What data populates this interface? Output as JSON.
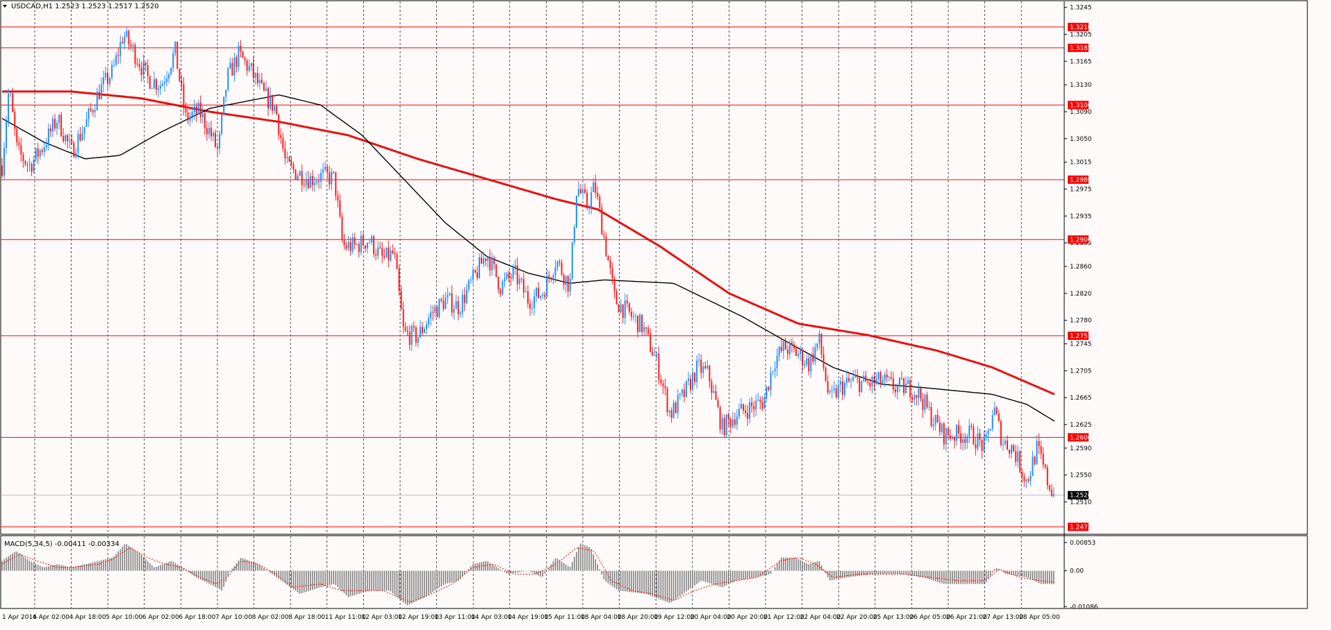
{
  "header": {
    "title": "USDCAD,H1  1.2523 1.2523 1.2517 1.2520",
    "macd_label": "MACD(5,34,5) -0.00411 -0.00334"
  },
  "colors": {
    "background": "#fffafa",
    "bull_candle": "#1e8fff",
    "bear_candle": "#ff1a1a",
    "ma_slow": "#e81010",
    "ma_fast": "#000000",
    "level_line": "#ff0000",
    "grid": "#000000",
    "histogram": "#7f7f7f",
    "signal": "#ff0000",
    "current_price_tag": "#000000"
  },
  "chart_data": {
    "type": "candlestick",
    "symbol": "USDCAD",
    "timeframe": "H1",
    "ylim": [
      1.2463,
      1.3254
    ],
    "y_ticks": [
      "1.3245",
      "1.3205",
      "1.3165",
      "1.3130",
      "1.3090",
      "1.3050",
      "1.3015",
      "1.2975",
      "1.2935",
      "1.2895",
      "1.2860",
      "1.2820",
      "1.2780",
      "1.2745",
      "1.2705",
      "1.2665",
      "1.2625",
      "1.2590",
      "1.2550",
      "1.2510"
    ],
    "x_labels": [
      "1 Apr 2016",
      "4 Apr 02:00",
      "4 Apr 18:00",
      "5 Apr 10:00",
      "6 Apr 02:00",
      "6 Apr 18:00",
      "7 Apr 10:00",
      "8 Apr 02:00",
      "8 Apr 18:00",
      "11 Apr 11:00",
      "12 Apr 03:00",
      "12 Apr 19:00",
      "13 Apr 11:00",
      "14 Apr 03:00",
      "14 Apr 19:00",
      "15 Apr 11:00",
      "18 Apr 04:00",
      "18 Apr 20:00",
      "19 Apr 12:00",
      "20 Apr 04:00",
      "20 Apr 20:00",
      "21 Apr 12:00",
      "22 Apr 04:00",
      "22 Apr 20:00",
      "25 Apr 13:00",
      "26 Apr 05:00",
      "26 Apr 21:00",
      "27 Apr 13:00",
      "28 Apr 05:00"
    ],
    "levels": [
      "1.3216",
      "1.3185",
      "1.3100",
      "1.2989",
      "1.2900",
      "1.2757",
      "1.2606",
      "1.2473"
    ],
    "current_price": "1.2520",
    "price_path": [
      [
        0,
        1.301
      ],
      [
        10,
        1.3125
      ],
      [
        22,
        1.303
      ],
      [
        40,
        1.301
      ],
      [
        60,
        1.304
      ],
      [
        80,
        1.308
      ],
      [
        100,
        1.303
      ],
      [
        120,
        1.307
      ],
      [
        140,
        1.312
      ],
      [
        160,
        1.315
      ],
      [
        175,
        1.3205
      ],
      [
        190,
        1.318
      ],
      [
        210,
        1.314
      ],
      [
        230,
        1.313
      ],
      [
        250,
        1.318
      ],
      [
        265,
        1.308
      ],
      [
        285,
        1.309
      ],
      [
        300,
        1.306
      ],
      [
        312,
        1.303
      ],
      [
        325,
        1.314
      ],
      [
        342,
        1.3175
      ],
      [
        360,
        1.315
      ],
      [
        378,
        1.3115
      ],
      [
        395,
        1.3095
      ],
      [
        410,
        1.301
      ],
      [
        425,
        1.3
      ],
      [
        445,
        1.299
      ],
      [
        465,
        1.2995
      ],
      [
        480,
        1.299
      ],
      [
        492,
        1.289
      ],
      [
        510,
        1.289
      ],
      [
        530,
        1.29
      ],
      [
        550,
        1.287
      ],
      [
        566,
        1.288
      ],
      [
        580,
        1.276
      ],
      [
        600,
        1.2755
      ],
      [
        620,
        1.279
      ],
      [
        640,
        1.281
      ],
      [
        660,
        1.28
      ],
      [
        680,
        1.284
      ],
      [
        700,
        1.288
      ],
      [
        720,
        1.283
      ],
      [
        740,
        1.285
      ],
      [
        760,
        1.281
      ],
      [
        780,
        1.282
      ],
      [
        800,
        1.287
      ],
      [
        820,
        1.283
      ],
      [
        830,
        1.298
      ],
      [
        845,
        1.295
      ],
      [
        856,
        1.298
      ],
      [
        870,
        1.29
      ],
      [
        885,
        1.281
      ],
      [
        905,
        1.279
      ],
      [
        925,
        1.277
      ],
      [
        945,
        1.272
      ],
      [
        965,
        1.264
      ],
      [
        985,
        1.267
      ],
      [
        1005,
        1.271
      ],
      [
        1020,
        1.27
      ],
      [
        1040,
        1.262
      ],
      [
        1060,
        1.264
      ],
      [
        1080,
        1.265
      ],
      [
        1100,
        1.266
      ],
      [
        1115,
        1.272
      ],
      [
        1130,
        1.274
      ],
      [
        1150,
        1.273
      ],
      [
        1165,
        1.2715
      ],
      [
        1180,
        1.275
      ],
      [
        1195,
        1.266
      ],
      [
        1210,
        1.268
      ],
      [
        1230,
        1.269
      ],
      [
        1250,
        1.2685
      ],
      [
        1270,
        1.269
      ],
      [
        1290,
        1.268
      ],
      [
        1310,
        1.268
      ],
      [
        1325,
        1.267
      ],
      [
        1340,
        1.264
      ],
      [
        1360,
        1.261
      ],
      [
        1380,
        1.261
      ],
      [
        1400,
        1.261
      ],
      [
        1420,
        1.259
      ],
      [
        1432,
        1.265
      ],
      [
        1445,
        1.26
      ],
      [
        1460,
        1.259
      ],
      [
        1480,
        1.254
      ],
      [
        1495,
        1.259
      ],
      [
        1510,
        1.254
      ],
      [
        1520,
        1.252
      ]
    ],
    "ma_slow": [
      [
        0,
        1.312
      ],
      [
        100,
        1.312
      ],
      [
        200,
        1.311
      ],
      [
        300,
        1.309
      ],
      [
        400,
        1.3075
      ],
      [
        500,
        1.3055
      ],
      [
        600,
        1.302
      ],
      [
        700,
        1.299
      ],
      [
        800,
        1.296
      ],
      [
        860,
        1.2945
      ],
      [
        950,
        1.289
      ],
      [
        1050,
        1.282
      ],
      [
        1150,
        1.2775
      ],
      [
        1250,
        1.2758
      ],
      [
        1350,
        1.2735
      ],
      [
        1430,
        1.271
      ],
      [
        1520,
        1.267
      ]
    ],
    "ma_fast": [
      [
        0,
        1.308
      ],
      [
        60,
        1.3045
      ],
      [
        120,
        1.302
      ],
      [
        170,
        1.3025
      ],
      [
        230,
        1.306
      ],
      [
        300,
        1.3095
      ],
      [
        400,
        1.3115
      ],
      [
        460,
        1.31
      ],
      [
        520,
        1.3055
      ],
      [
        580,
        1.299
      ],
      [
        640,
        1.2925
      ],
      [
        700,
        1.2875
      ],
      [
        760,
        1.285
      ],
      [
        820,
        1.2835
      ],
      [
        870,
        1.284
      ],
      [
        970,
        1.2835
      ],
      [
        1070,
        1.2785
      ],
      [
        1130,
        1.275
      ],
      [
        1200,
        1.271
      ],
      [
        1270,
        1.2685
      ],
      [
        1330,
        1.268
      ],
      [
        1430,
        1.267
      ],
      [
        1480,
        1.2655
      ],
      [
        1520,
        1.263
      ]
    ],
    "macd": {
      "ylim": [
        -0.0112,
        0.0104
      ],
      "ticks": [
        "0.00853",
        "0.00",
        "-0.01086"
      ],
      "histogram": [
        [
          0,
          0.003
        ],
        [
          20,
          0.006
        ],
        [
          40,
          0.003
        ],
        [
          60,
          0.001
        ],
        [
          80,
          0.002
        ],
        [
          100,
          0.001
        ],
        [
          140,
          0.003
        ],
        [
          160,
          0.004
        ],
        [
          178,
          0.0083
        ],
        [
          200,
          0.005
        ],
        [
          220,
          0.001
        ],
        [
          245,
          0.003
        ],
        [
          260,
          0.001
        ],
        [
          280,
          -0.002
        ],
        [
          300,
          -0.004
        ],
        [
          318,
          -0.006
        ],
        [
          330,
          0.0
        ],
        [
          345,
          0.004
        ],
        [
          370,
          0.002
        ],
        [
          390,
          -0.001
        ],
        [
          410,
          -0.004
        ],
        [
          430,
          -0.007
        ],
        [
          460,
          -0.005
        ],
        [
          480,
          -0.004
        ],
        [
          500,
          -0.008
        ],
        [
          530,
          -0.006
        ],
        [
          560,
          -0.006
        ],
        [
          585,
          -0.0105
        ],
        [
          610,
          -0.008
        ],
        [
          640,
          -0.004
        ],
        [
          660,
          -0.003
        ],
        [
          680,
          0.002
        ],
        [
          700,
          0.003
        ],
        [
          730,
          -0.001
        ],
        [
          760,
          0.0
        ],
        [
          780,
          -0.002
        ],
        [
          800,
          0.004
        ],
        [
          820,
          0.001
        ],
        [
          835,
          0.0083
        ],
        [
          850,
          0.007
        ],
        [
          870,
          -0.003
        ],
        [
          890,
          -0.006
        ],
        [
          930,
          -0.007
        ],
        [
          965,
          -0.0098
        ],
        [
          990,
          -0.006
        ],
        [
          1010,
          -0.003
        ],
        [
          1040,
          -0.005
        ],
        [
          1060,
          -0.003
        ],
        [
          1090,
          -0.002
        ],
        [
          1110,
          -0.001
        ],
        [
          1125,
          0.004
        ],
        [
          1145,
          0.004
        ],
        [
          1165,
          0.002
        ],
        [
          1180,
          0.003
        ],
        [
          1195,
          -0.003
        ],
        [
          1220,
          -0.002
        ],
        [
          1260,
          -0.001
        ],
        [
          1300,
          -0.001
        ],
        [
          1330,
          -0.002
        ],
        [
          1360,
          -0.004
        ],
        [
          1390,
          -0.004
        ],
        [
          1420,
          -0.004
        ],
        [
          1435,
          0.001
        ],
        [
          1450,
          -0.001
        ],
        [
          1480,
          -0.002
        ],
        [
          1500,
          -0.004
        ],
        [
          1520,
          -0.004
        ]
      ],
      "signal": [
        [
          0,
          0.002
        ],
        [
          25,
          0.005
        ],
        [
          50,
          0.003
        ],
        [
          80,
          0.001
        ],
        [
          100,
          0.001
        ],
        [
          140,
          0.002
        ],
        [
          160,
          0.0035
        ],
        [
          185,
          0.007
        ],
        [
          210,
          0.004
        ],
        [
          235,
          0.002
        ],
        [
          260,
          0.001
        ],
        [
          285,
          -0.002
        ],
        [
          310,
          -0.004
        ],
        [
          325,
          -0.002
        ],
        [
          345,
          0.003
        ],
        [
          370,
          0.002
        ],
        [
          395,
          -0.001
        ],
        [
          420,
          -0.005
        ],
        [
          460,
          -0.004
        ],
        [
          490,
          -0.006
        ],
        [
          520,
          -0.006
        ],
        [
          550,
          -0.006
        ],
        [
          590,
          -0.0095
        ],
        [
          620,
          -0.007
        ],
        [
          650,
          -0.004
        ],
        [
          680,
          0.001
        ],
        [
          710,
          0.002
        ],
        [
          740,
          -0.001
        ],
        [
          770,
          -0.001
        ],
        [
          800,
          0.002
        ],
        [
          830,
          0.007
        ],
        [
          855,
          0.006
        ],
        [
          880,
          -0.003
        ],
        [
          910,
          -0.006
        ],
        [
          940,
          -0.007
        ],
        [
          970,
          -0.009
        ],
        [
          1000,
          -0.006
        ],
        [
          1030,
          -0.004
        ],
        [
          1060,
          -0.003
        ],
        [
          1090,
          -0.002
        ],
        [
          1125,
          0.003
        ],
        [
          1150,
          0.004
        ],
        [
          1175,
          0.002
        ],
        [
          1200,
          -0.002
        ],
        [
          1240,
          -0.001
        ],
        [
          1300,
          -0.001
        ],
        [
          1340,
          -0.002
        ],
        [
          1380,
          -0.003
        ],
        [
          1420,
          -0.003
        ],
        [
          1440,
          0.0005
        ],
        [
          1470,
          -0.002
        ],
        [
          1500,
          -0.003
        ],
        [
          1520,
          -0.0035
        ]
      ]
    }
  }
}
